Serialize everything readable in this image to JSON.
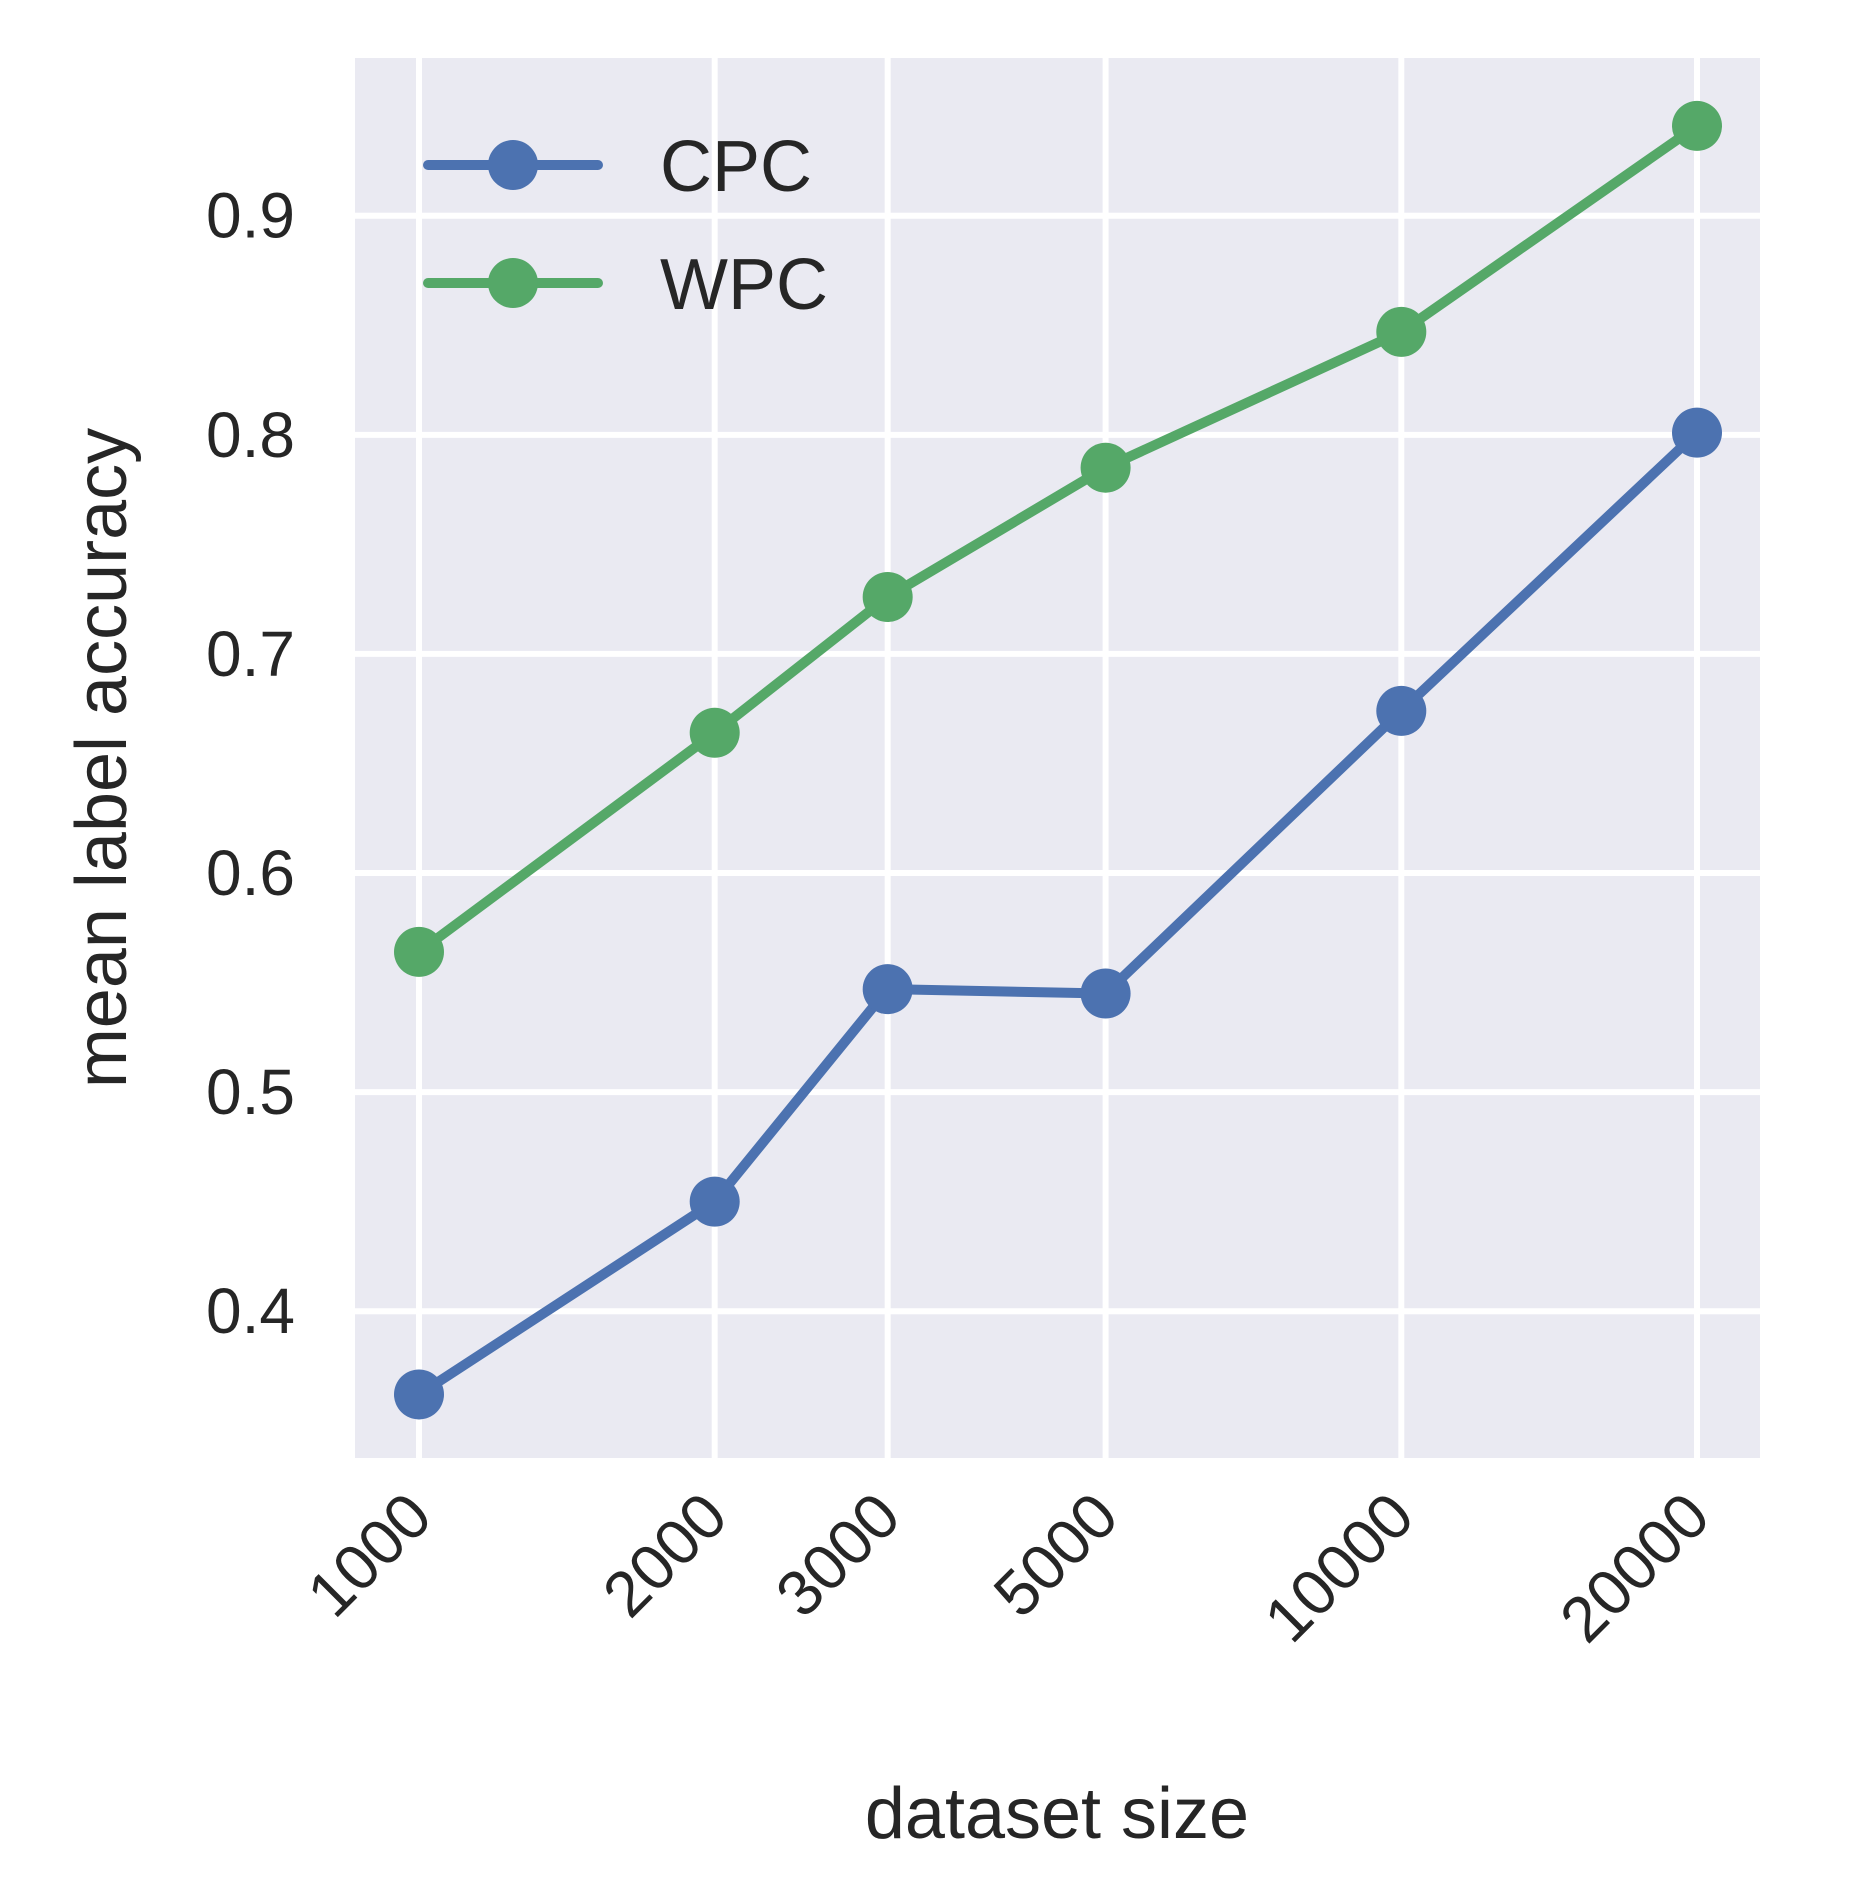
{
  "chart_data": {
    "type": "line",
    "xscale": "log",
    "x": [
      1000,
      2000,
      3000,
      5000,
      10000,
      20000
    ],
    "x_tick_labels": [
      "1000",
      "2000",
      "3000",
      "5000",
      "10000",
      "20000"
    ],
    "xlabel": "dataset size",
    "ylabel": "mean label accuracy",
    "ylim": [
      0.333,
      0.972
    ],
    "y_ticks": [
      0.4,
      0.5,
      0.6,
      0.7,
      0.8,
      0.9
    ],
    "y_tick_labels": [
      "0.4",
      "0.5",
      "0.6",
      "0.7",
      "0.8",
      "0.9"
    ],
    "grid": true,
    "legend_position": "top-left",
    "background": "#eaeaf2",
    "series": [
      {
        "name": "CPC",
        "color": "#4c72b0",
        "values": [
          0.362,
          0.45,
          0.547,
          0.545,
          0.674,
          0.801
        ]
      },
      {
        "name": "WPC",
        "color": "#55a868",
        "values": [
          0.564,
          0.664,
          0.726,
          0.785,
          0.847,
          0.941
        ]
      }
    ]
  }
}
